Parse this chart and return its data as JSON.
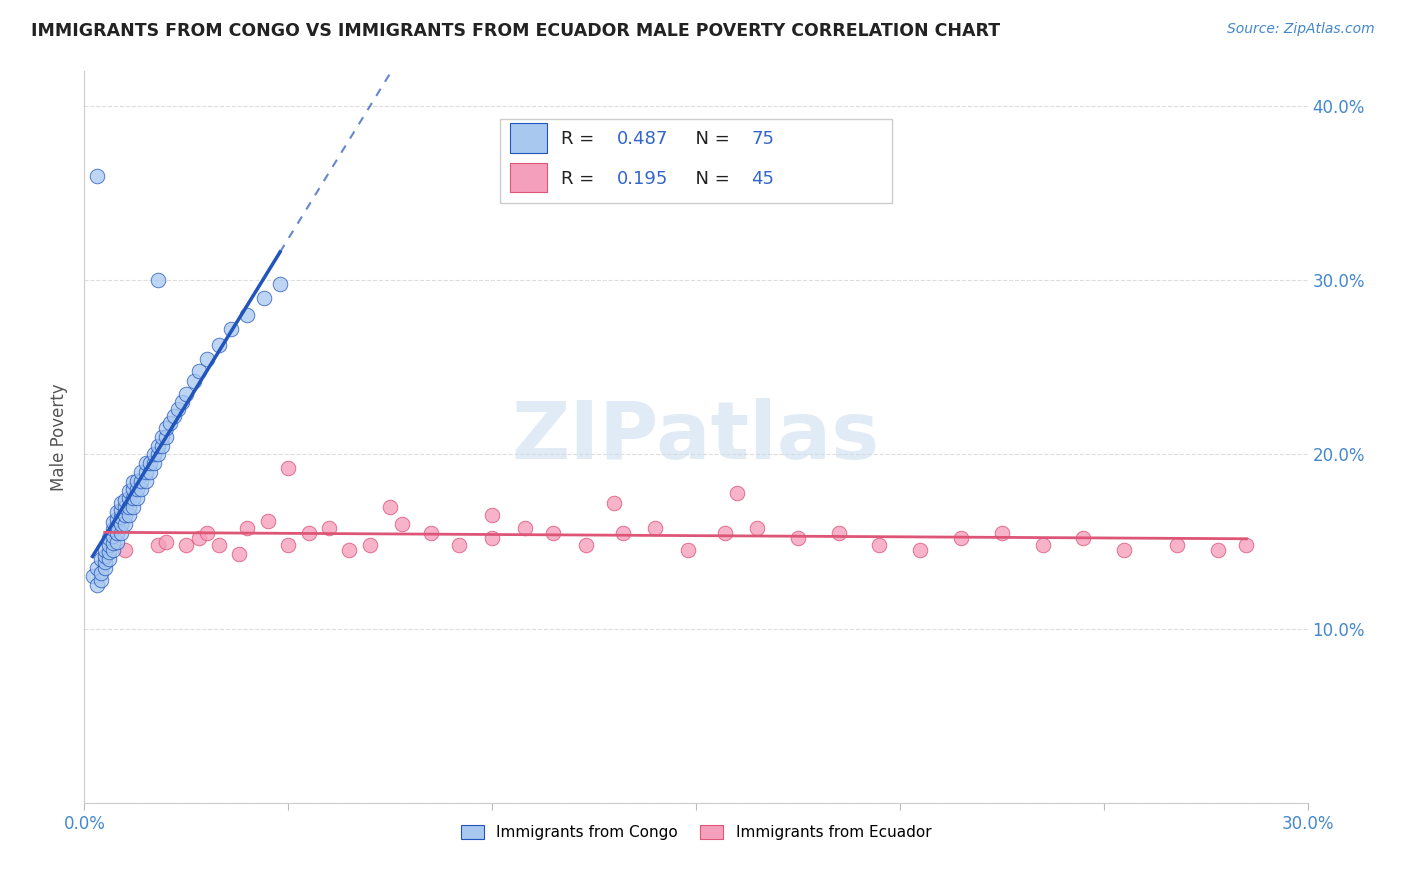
{
  "title": "IMMIGRANTS FROM CONGO VS IMMIGRANTS FROM ECUADOR MALE POVERTY CORRELATION CHART",
  "source": "Source: ZipAtlas.com",
  "ylabel": "Male Poverty",
  "xlim": [
    0.0,
    0.3
  ],
  "ylim": [
    0.0,
    0.42
  ],
  "x_ticks": [
    0.0,
    0.05,
    0.1,
    0.15,
    0.2,
    0.25,
    0.3
  ],
  "x_tick_labels": [
    "0.0%",
    "",
    "",
    "",
    "",
    "",
    "30.0%"
  ],
  "y_ticks": [
    0.0,
    0.1,
    0.2,
    0.3,
    0.4
  ],
  "y_tick_labels": [
    "",
    "10.0%",
    "20.0%",
    "30.0%",
    "40.0%"
  ],
  "legend_label1": "Immigrants from Congo",
  "legend_label2": "Immigrants from Ecuador",
  "R1": "0.487",
  "N1": "75",
  "R2": "0.195",
  "N2": "45",
  "color1": "#A8C8F0",
  "color2": "#F4A0BC",
  "line_color1": "#2255BB",
  "line_color2": "#DD5577",
  "watermark": "ZIPatlas",
  "congo_x": [
    0.002,
    0.003,
    0.003,
    0.004,
    0.004,
    0.004,
    0.005,
    0.005,
    0.005,
    0.005,
    0.006,
    0.006,
    0.006,
    0.006,
    0.007,
    0.007,
    0.007,
    0.007,
    0.007,
    0.008,
    0.008,
    0.008,
    0.008,
    0.008,
    0.009,
    0.009,
    0.009,
    0.009,
    0.009,
    0.01,
    0.01,
    0.01,
    0.01,
    0.011,
    0.011,
    0.011,
    0.011,
    0.012,
    0.012,
    0.012,
    0.012,
    0.013,
    0.013,
    0.013,
    0.014,
    0.014,
    0.014,
    0.015,
    0.015,
    0.015,
    0.016,
    0.016,
    0.017,
    0.017,
    0.018,
    0.018,
    0.019,
    0.019,
    0.02,
    0.02,
    0.021,
    0.022,
    0.023,
    0.024,
    0.025,
    0.027,
    0.028,
    0.03,
    0.033,
    0.036,
    0.04,
    0.044,
    0.048,
    0.018,
    0.003
  ],
  "congo_y": [
    0.13,
    0.125,
    0.135,
    0.128,
    0.132,
    0.14,
    0.135,
    0.138,
    0.142,
    0.145,
    0.14,
    0.144,
    0.148,
    0.152,
    0.145,
    0.149,
    0.153,
    0.157,
    0.161,
    0.15,
    0.155,
    0.159,
    0.163,
    0.167,
    0.155,
    0.16,
    0.164,
    0.168,
    0.172,
    0.16,
    0.165,
    0.17,
    0.174,
    0.165,
    0.17,
    0.175,
    0.179,
    0.17,
    0.175,
    0.18,
    0.184,
    0.175,
    0.18,
    0.185,
    0.18,
    0.185,
    0.19,
    0.185,
    0.19,
    0.195,
    0.19,
    0.195,
    0.195,
    0.2,
    0.2,
    0.205,
    0.205,
    0.21,
    0.21,
    0.215,
    0.218,
    0.222,
    0.226,
    0.23,
    0.235,
    0.242,
    0.248,
    0.255,
    0.263,
    0.272,
    0.28,
    0.29,
    0.298,
    0.3,
    0.36
  ],
  "ecuador_x": [
    0.005,
    0.01,
    0.018,
    0.02,
    0.025,
    0.028,
    0.03,
    0.033,
    0.038,
    0.04,
    0.045,
    0.05,
    0.055,
    0.06,
    0.065,
    0.07,
    0.078,
    0.085,
    0.092,
    0.1,
    0.108,
    0.115,
    0.123,
    0.132,
    0.14,
    0.148,
    0.157,
    0.165,
    0.175,
    0.185,
    0.195,
    0.205,
    0.215,
    0.225,
    0.235,
    0.245,
    0.255,
    0.268,
    0.278,
    0.285,
    0.05,
    0.075,
    0.1,
    0.13,
    0.16
  ],
  "ecuador_y": [
    0.142,
    0.145,
    0.148,
    0.15,
    0.148,
    0.152,
    0.155,
    0.148,
    0.143,
    0.158,
    0.162,
    0.148,
    0.155,
    0.158,
    0.145,
    0.148,
    0.16,
    0.155,
    0.148,
    0.152,
    0.158,
    0.155,
    0.148,
    0.155,
    0.158,
    0.145,
    0.155,
    0.158,
    0.152,
    0.155,
    0.148,
    0.145,
    0.152,
    0.155,
    0.148,
    0.152,
    0.145,
    0.148,
    0.145,
    0.148,
    0.192,
    0.17,
    0.165,
    0.172,
    0.178
  ]
}
